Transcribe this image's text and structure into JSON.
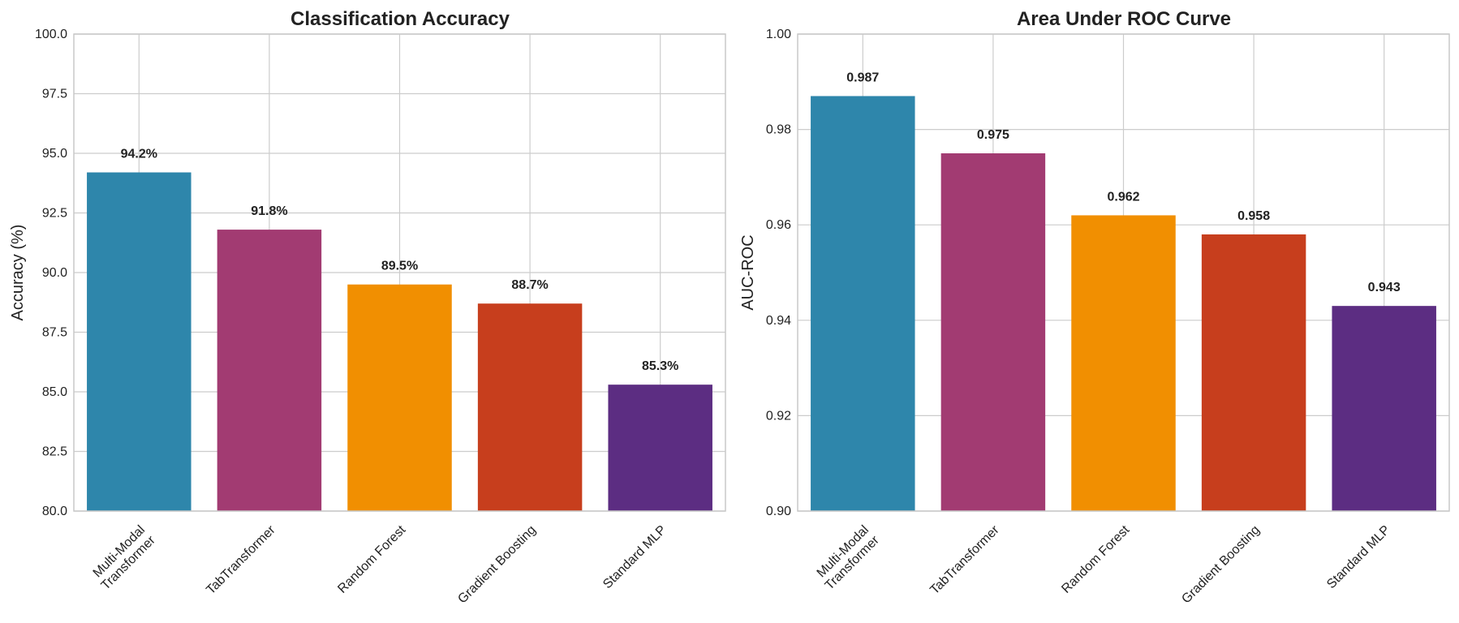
{
  "chart_data": [
    {
      "type": "bar",
      "title": "Classification Accuracy",
      "xlabel": "",
      "ylabel": "Accuracy (%)",
      "ylim": [
        80,
        100
      ],
      "yticks": [
        "80.0",
        "82.5",
        "85.0",
        "87.5",
        "90.0",
        "92.5",
        "95.0",
        "97.5",
        "100.0"
      ],
      "categories": [
        "Multi-Modal\nTransformer",
        "TabTransformer",
        "Random Forest",
        "Gradient Boosting",
        "Standard MLP"
      ],
      "values": [
        94.2,
        91.8,
        89.5,
        88.7,
        85.3
      ],
      "data_labels": [
        "94.2%",
        "91.8%",
        "89.5%",
        "88.7%",
        "85.3%"
      ],
      "colors": [
        "#2E86AB",
        "#A23B72",
        "#F18F01",
        "#C73E1D",
        "#5C2D82"
      ],
      "grid": true
    },
    {
      "type": "bar",
      "title": "Area Under ROC Curve",
      "xlabel": "",
      "ylabel": "AUC-ROC",
      "ylim": [
        0.9,
        1.0
      ],
      "yticks": [
        "0.90",
        "0.92",
        "0.94",
        "0.96",
        "0.98",
        "1.00"
      ],
      "categories": [
        "Multi-Modal\nTransformer",
        "TabTransformer",
        "Random Forest",
        "Gradient Boosting",
        "Standard MLP"
      ],
      "values": [
        0.987,
        0.975,
        0.962,
        0.958,
        0.943
      ],
      "data_labels": [
        "0.987",
        "0.975",
        "0.962",
        "0.958",
        "0.943"
      ],
      "colors": [
        "#2E86AB",
        "#A23B72",
        "#F18F01",
        "#C73E1D",
        "#5C2D82"
      ],
      "grid": true
    }
  ]
}
